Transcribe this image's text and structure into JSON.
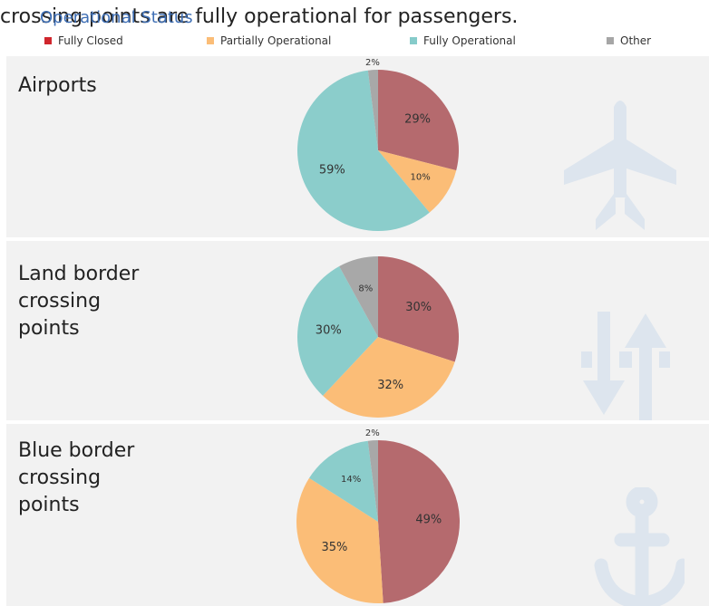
{
  "header": {
    "text": "crossing points are fully operational for passengers.",
    "legend_title": "Operational Status"
  },
  "legend": [
    {
      "label": "Fully Closed",
      "color": "#d0262d"
    },
    {
      "label": "Partially Operational",
      "color": "#fbbd77"
    },
    {
      "label": "Fully Operational",
      "color": "#86cbca"
    },
    {
      "label": "Other",
      "color": "#a6a6a6"
    }
  ],
  "colors": {
    "closed_slice": "#b56a6e",
    "partial_slice": "#fbbd77",
    "full_slice": "#8bcdcb",
    "other_slice": "#a8a8a8",
    "panel_bg": "#f2f2f2",
    "icon": "#dde5ee"
  },
  "chart_data": [
    {
      "type": "pie",
      "title": "Airports",
      "icon": "airplane-icon",
      "slices": [
        {
          "category": "Fully Closed",
          "value": 29,
          "label": "29%"
        },
        {
          "category": "Partially Operational",
          "value": 10,
          "label": "10%"
        },
        {
          "category": "Fully Operational",
          "value": 59,
          "label": "59%"
        },
        {
          "category": "Other",
          "value": 2,
          "label": "2%"
        }
      ]
    },
    {
      "type": "pie",
      "title": "Land border\ncrossing\npoints",
      "icon": "up-down-arrows-icon",
      "slices": [
        {
          "category": "Fully Closed",
          "value": 30,
          "label": "30%"
        },
        {
          "category": "Partially Operational",
          "value": 32,
          "label": "32%"
        },
        {
          "category": "Fully Operational",
          "value": 30,
          "label": "30%"
        },
        {
          "category": "Other",
          "value": 8,
          "label": "8%"
        }
      ]
    },
    {
      "type": "pie",
      "title": "Blue border\ncrossing\npoints",
      "icon": "anchor-icon",
      "slices": [
        {
          "category": "Fully Closed",
          "value": 49,
          "label": "49%"
        },
        {
          "category": "Partially Operational",
          "value": 35,
          "label": "35%"
        },
        {
          "category": "Fully Operational",
          "value": 14,
          "label": "14%"
        },
        {
          "category": "Other",
          "value": 2,
          "label": "2%"
        }
      ]
    }
  ]
}
